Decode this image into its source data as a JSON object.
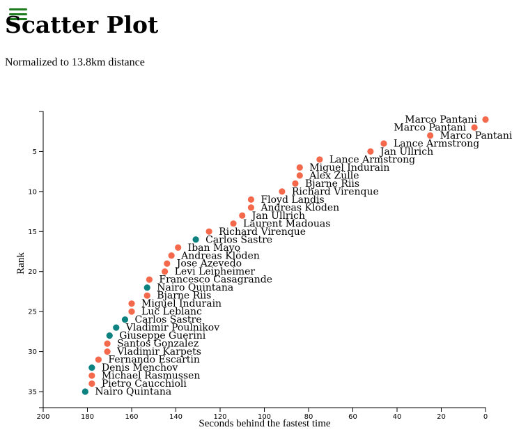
{
  "page": {
    "title": "Scatter Plot",
    "subtitle": "Normalized to 13.8km distance",
    "menu_icon": "hamburger-menu-icon"
  },
  "colors": {
    "doping": "#f4694c",
    "clean": "#0e8280",
    "menu": "#1e7a1e"
  },
  "chart_data": {
    "type": "scatter",
    "title": "Scatter Plot",
    "subtitle": "Normalized to 13.8km distance",
    "xlabel": "Seconds behind the fastest time",
    "ylabel": "Rank",
    "xlim": [
      200,
      0
    ],
    "ylim": [
      0,
      37
    ],
    "x_ticks": [
      200,
      180,
      160,
      140,
      120,
      100,
      80,
      60,
      40,
      20,
      0
    ],
    "y_ticks": [
      5,
      10,
      15,
      20,
      25,
      30,
      35
    ],
    "grid": false,
    "points": [
      {
        "rank": 1,
        "seconds": 0,
        "name": "Marco Pantani",
        "group": "doping"
      },
      {
        "rank": 2,
        "seconds": 5,
        "name": "Marco Pantani",
        "group": "doping"
      },
      {
        "rank": 3,
        "seconds": 25,
        "name": "Marco Pantani",
        "group": "doping"
      },
      {
        "rank": 4,
        "seconds": 46,
        "name": "Lance Armstrong",
        "group": "doping"
      },
      {
        "rank": 5,
        "seconds": 52,
        "name": "Jan Ullrich",
        "group": "doping"
      },
      {
        "rank": 6,
        "seconds": 75,
        "name": "Lance Armstrong",
        "group": "doping"
      },
      {
        "rank": 7,
        "seconds": 84,
        "name": "Miguel Indurain",
        "group": "doping"
      },
      {
        "rank": 8,
        "seconds": 84,
        "name": "Alex Zülle",
        "group": "doping"
      },
      {
        "rank": 9,
        "seconds": 86,
        "name": "Bjarne Riis",
        "group": "doping"
      },
      {
        "rank": 10,
        "seconds": 92,
        "name": "Richard Virenque",
        "group": "doping"
      },
      {
        "rank": 11,
        "seconds": 106,
        "name": "Floyd Landis",
        "group": "doping"
      },
      {
        "rank": 12,
        "seconds": 106,
        "name": "Andreas Klöden",
        "group": "doping"
      },
      {
        "rank": 13,
        "seconds": 110,
        "name": "Jan Ullrich",
        "group": "doping"
      },
      {
        "rank": 14,
        "seconds": 114,
        "name": "Laurent Madouas",
        "group": "doping"
      },
      {
        "rank": 15,
        "seconds": 125,
        "name": "Richard Virenque",
        "group": "doping"
      },
      {
        "rank": 16,
        "seconds": 131,
        "name": "Carlos Sastre",
        "group": "clean"
      },
      {
        "rank": 17,
        "seconds": 139,
        "name": "Iban Mayo",
        "group": "doping"
      },
      {
        "rank": 18,
        "seconds": 142,
        "name": "Andreas Klöden",
        "group": "doping"
      },
      {
        "rank": 19,
        "seconds": 144,
        "name": "Jose Azevedo",
        "group": "doping"
      },
      {
        "rank": 20,
        "seconds": 145,
        "name": "Levi Leipheimer",
        "group": "doping"
      },
      {
        "rank": 21,
        "seconds": 152,
        "name": "Francesco Casagrande",
        "group": "doping"
      },
      {
        "rank": 22,
        "seconds": 153,
        "name": "Nairo Quintana",
        "group": "clean"
      },
      {
        "rank": 23,
        "seconds": 153,
        "name": "Bjarne Riis",
        "group": "doping"
      },
      {
        "rank": 24,
        "seconds": 160,
        "name": "Miguel Indurain",
        "group": "doping"
      },
      {
        "rank": 25,
        "seconds": 160,
        "name": "Luc Leblanc",
        "group": "doping"
      },
      {
        "rank": 26,
        "seconds": 163,
        "name": "Carlos Sastre",
        "group": "clean"
      },
      {
        "rank": 27,
        "seconds": 167,
        "name": "Vladimir Poulnikov",
        "group": "clean"
      },
      {
        "rank": 28,
        "seconds": 170,
        "name": "Giuseppe Guerini",
        "group": "clean"
      },
      {
        "rank": 29,
        "seconds": 171,
        "name": "Santos Gonzalez",
        "group": "doping"
      },
      {
        "rank": 30,
        "seconds": 171,
        "name": "Vladimir Karpets",
        "group": "doping"
      },
      {
        "rank": 31,
        "seconds": 175,
        "name": "Fernando Escartin",
        "group": "doping"
      },
      {
        "rank": 32,
        "seconds": 178,
        "name": "Denis Menchov",
        "group": "clean"
      },
      {
        "rank": 33,
        "seconds": 178,
        "name": "Michael Rasmussen",
        "group": "doping"
      },
      {
        "rank": 34,
        "seconds": 178,
        "name": "Pietro Caucchioli",
        "group": "doping"
      },
      {
        "rank": 35,
        "seconds": 181,
        "name": "Nairo Quintana",
        "group": "clean"
      }
    ]
  }
}
